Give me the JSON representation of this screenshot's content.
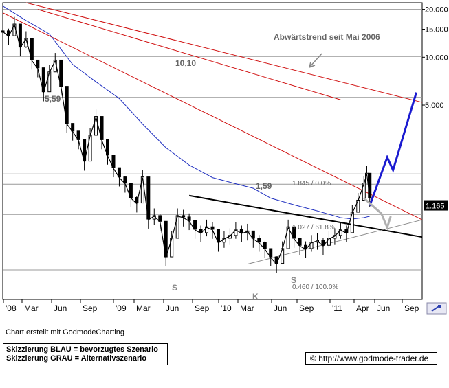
{
  "chart_data": {
    "type": "candlestick",
    "title": "Abwärtstrend seit Mai 2006",
    "y_scale": "log",
    "ylim": [
      0.3,
      22
    ],
    "y_ticks": [
      {
        "value": 20,
        "label": "20.000"
      },
      {
        "value": 15,
        "label": "15.000"
      },
      {
        "value": 10,
        "label": "10.000"
      },
      {
        "value": 5,
        "label": "5.000"
      }
    ],
    "x_ticks": [
      "'08",
      "Mar",
      "Jun",
      "Sep",
      "'09",
      "Mar",
      "Jun",
      "Sep",
      "'10",
      "Mar",
      "Jun",
      "Sep",
      "'11",
      "Apr",
      "Jun",
      "Sep"
    ],
    "last_price": "1.165",
    "annotations": {
      "level_1": "10,10",
      "level_2": "5,59",
      "level_3": "1,59",
      "low_marker": "K",
      "shoulder_left": "S",
      "shoulder_right": "S",
      "fib_1": "1.845 / 0.0%",
      "fib_2": "1.027 / 61.8%",
      "fib_3": "0.460 / 100.0%"
    },
    "horizontal_levels": [
      20,
      10.1,
      5.59,
      1.845,
      1.59,
      1.027,
      0.46
    ],
    "price_path": [
      [
        0.0,
        14.5
      ],
      [
        0.5,
        13.5
      ],
      [
        1.0,
        16.0
      ],
      [
        1.5,
        11.5
      ],
      [
        2.0,
        13.0
      ],
      [
        2.5,
        9.5
      ],
      [
        3.0,
        8.5
      ],
      [
        3.5,
        6.0
      ],
      [
        4.0,
        8.0
      ],
      [
        4.5,
        9.5
      ],
      [
        5.0,
        6.5
      ],
      [
        5.5,
        3.8
      ],
      [
        6.0,
        3.4
      ],
      [
        6.5,
        3.0
      ],
      [
        7.0,
        2.2
      ],
      [
        7.5,
        3.2
      ],
      [
        8.0,
        4.2
      ],
      [
        8.5,
        3.0
      ],
      [
        9.0,
        2.4
      ],
      [
        9.5,
        2.0
      ],
      [
        10.0,
        1.75
      ],
      [
        10.5,
        1.6
      ],
      [
        11.0,
        1.3
      ],
      [
        11.5,
        1.2
      ],
      [
        12.0,
        1.75
      ],
      [
        12.5,
        0.95
      ],
      [
        13.0,
        1.0
      ],
      [
        13.5,
        0.92
      ],
      [
        14.0,
        0.55
      ],
      [
        14.5,
        0.72
      ],
      [
        15.0,
        1.0
      ],
      [
        15.5,
        0.98
      ],
      [
        16.0,
        0.93
      ],
      [
        16.5,
        0.82
      ],
      [
        17.0,
        0.78
      ],
      [
        17.5,
        0.85
      ],
      [
        18.0,
        0.82
      ],
      [
        18.5,
        0.68
      ],
      [
        19.0,
        0.72
      ],
      [
        19.5,
        0.75
      ],
      [
        20.0,
        0.82
      ],
      [
        20.5,
        0.78
      ],
      [
        21.0,
        0.8
      ],
      [
        21.5,
        0.72
      ],
      [
        22.0,
        0.68
      ],
      [
        22.5,
        0.62
      ],
      [
        23.0,
        0.55
      ],
      [
        23.5,
        0.5
      ],
      [
        24.0,
        0.62
      ],
      [
        24.5,
        0.85
      ],
      [
        25.0,
        0.72
      ],
      [
        25.5,
        0.65
      ],
      [
        26.0,
        0.62
      ],
      [
        26.5,
        0.68
      ],
      [
        27.0,
        0.7
      ],
      [
        27.5,
        0.65
      ],
      [
        28.0,
        0.72
      ],
      [
        28.5,
        0.75
      ],
      [
        29.0,
        0.82
      ],
      [
        29.5,
        0.78
      ],
      [
        30.0,
        1.05
      ],
      [
        30.5,
        1.25
      ],
      [
        31.0,
        1.6
      ],
      [
        31.25,
        1.845
      ],
      [
        31.5,
        1.3
      ]
    ],
    "blue_scenario": [
      [
        31.5,
        1.165
      ],
      [
        33.0,
        2.35
      ],
      [
        33.5,
        1.95
      ],
      [
        35.5,
        6.0
      ]
    ],
    "grey_scenario": [
      [
        31.0,
        1.3
      ],
      [
        32.5,
        1.04
      ],
      [
        33.0,
        0.85
      ],
      [
        33.3,
        1.0
      ]
    ]
  },
  "footer": {
    "credit": "Chart erstellt mit GodmodeCharting",
    "legend_blue": "Skizzierung BLAU = bevorzugtes Szenario",
    "legend_grey": "Skizzierung GRAU = Alternativszenario",
    "url": "http://www.godmode-trader.de",
    "copyright": "©"
  }
}
